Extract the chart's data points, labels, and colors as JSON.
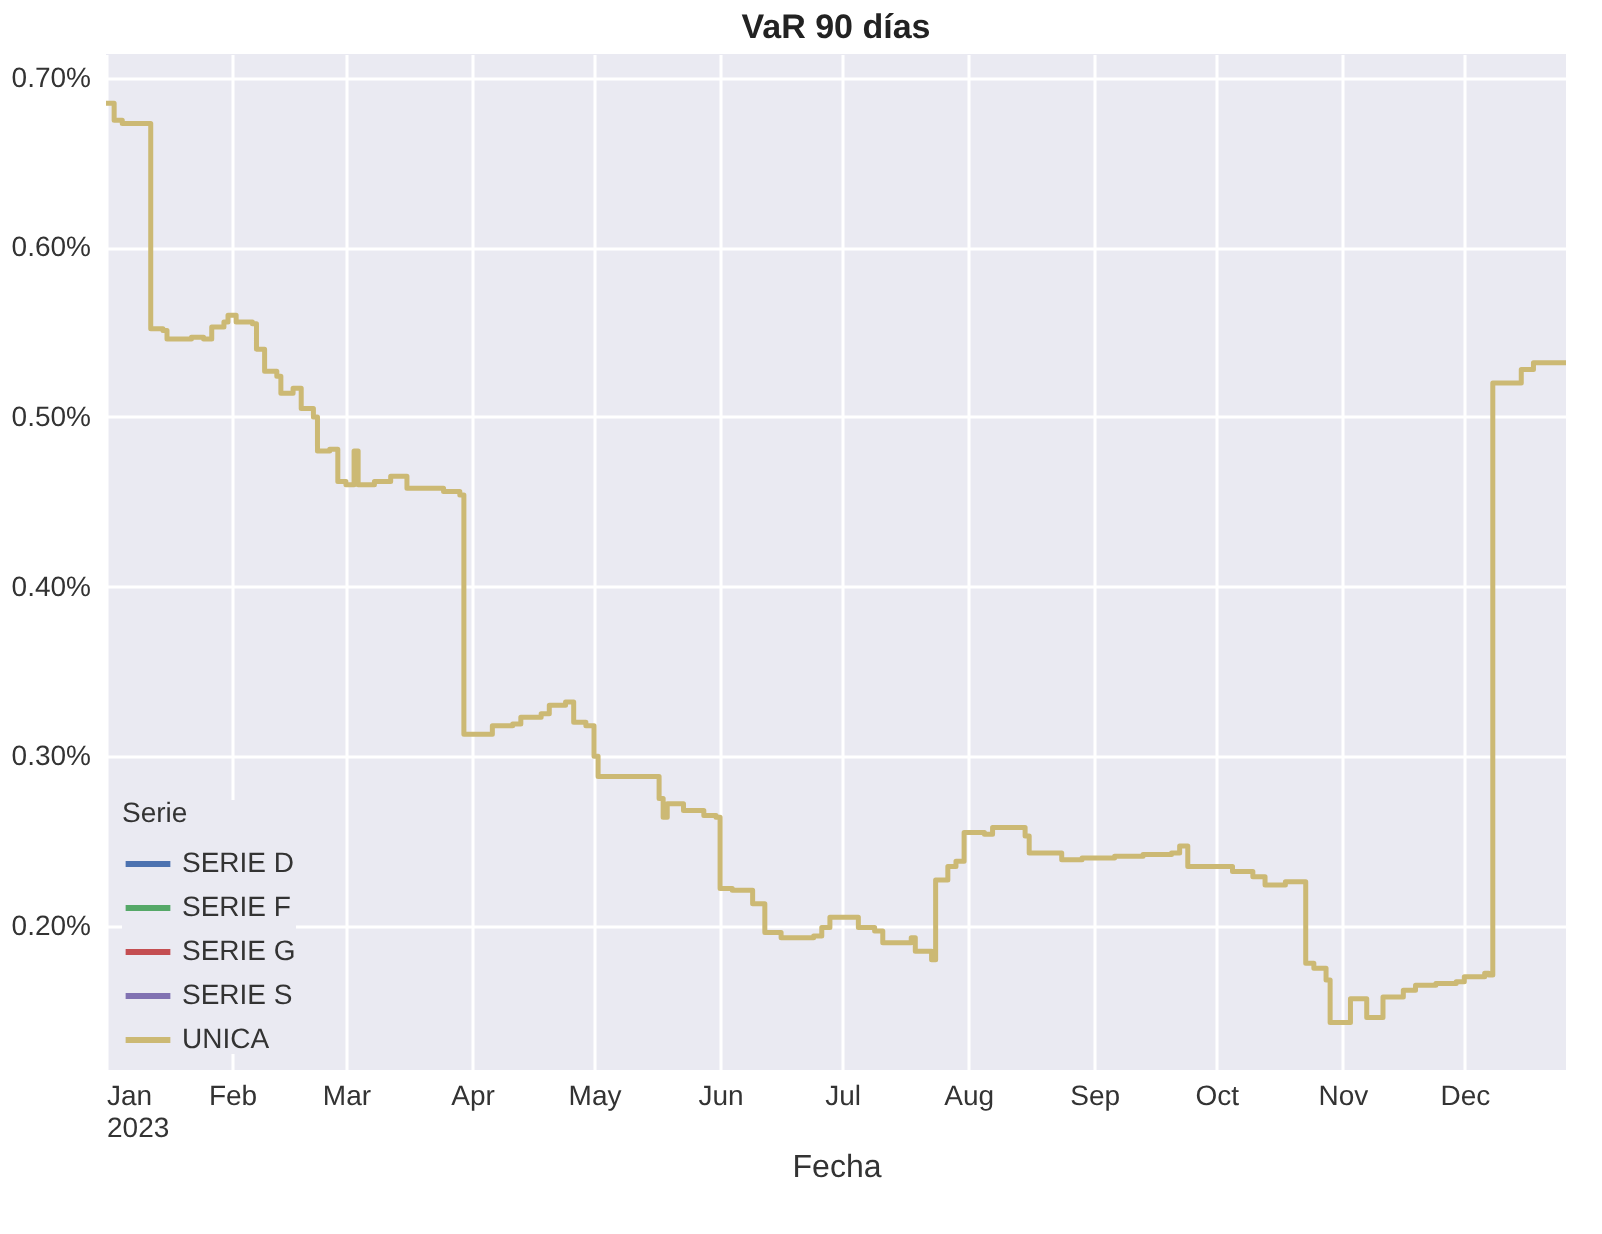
{
  "chart_data": {
    "type": "step",
    "title": "VaR 90 días",
    "xlabel": "Fecha",
    "legend_title": "Serie",
    "x": [
      "2023-01-01",
      "2023-01-03",
      "2023-01-05",
      "2023-01-11",
      "2023-01-12",
      "2023-01-15",
      "2023-01-16",
      "2023-01-22",
      "2023-01-25",
      "2023-01-27",
      "2023-01-30",
      "2023-01-31",
      "2023-02-02",
      "2023-02-06",
      "2023-02-07",
      "2023-02-09",
      "2023-02-12",
      "2023-02-13",
      "2023-02-16",
      "2023-02-18",
      "2023-02-21",
      "2023-02-22",
      "2023-02-25",
      "2023-02-27",
      "2023-03-01",
      "2023-03-03",
      "2023-03-04",
      "2023-03-08",
      "2023-03-12",
      "2023-03-16",
      "2023-03-25",
      "2023-03-29",
      "2023-03-30",
      "2023-04-02",
      "2023-04-06",
      "2023-04-11",
      "2023-04-13",
      "2023-04-18",
      "2023-04-20",
      "2023-04-24",
      "2023-04-26",
      "2023-04-29",
      "2023-05-01",
      "2023-05-02",
      "2023-05-15",
      "2023-05-17",
      "2023-05-18",
      "2023-05-19",
      "2023-05-23",
      "2023-05-28",
      "2023-05-31",
      "2023-06-01",
      "2023-06-04",
      "2023-06-09",
      "2023-06-12",
      "2023-06-16",
      "2023-06-24",
      "2023-06-26",
      "2023-06-28",
      "2023-07-01",
      "2023-07-05",
      "2023-07-09",
      "2023-07-11",
      "2023-07-16",
      "2023-07-18",
      "2023-07-19",
      "2023-07-23",
      "2023-07-24",
      "2023-07-27",
      "2023-07-29",
      "2023-07-31",
      "2023-08-05",
      "2023-08-07",
      "2023-08-12",
      "2023-08-15",
      "2023-08-16",
      "2023-08-20",
      "2023-08-24",
      "2023-08-29",
      "2023-09-06",
      "2023-09-13",
      "2023-09-20",
      "2023-09-22",
      "2023-09-24",
      "2023-09-30",
      "2023-10-05",
      "2023-10-10",
      "2023-10-13",
      "2023-10-18",
      "2023-10-22",
      "2023-10-23",
      "2023-10-25",
      "2023-10-28",
      "2023-10-29",
      "2023-11-01",
      "2023-11-03",
      "2023-11-05",
      "2023-11-07",
      "2023-11-09",
      "2023-11-11",
      "2023-11-16",
      "2023-11-19",
      "2023-11-24",
      "2023-11-29",
      "2023-12-01",
      "2023-12-06",
      "2023-12-07",
      "2023-12-08",
      "2023-12-11",
      "2023-12-15",
      "2023-12-18",
      "2023-12-26"
    ],
    "series": [
      {
        "name": "SERIE D",
        "color": "#4c72b0",
        "values": [
          null,
          null,
          null,
          null,
          null,
          null,
          null,
          null,
          null,
          null,
          null,
          null,
          null,
          null,
          null,
          null,
          null,
          null,
          null,
          null,
          null,
          null,
          null,
          null,
          null,
          null,
          null,
          null,
          null,
          null,
          null,
          null,
          null,
          null,
          null,
          null,
          null,
          null,
          null,
          null,
          null,
          null,
          null,
          null,
          null,
          null,
          null,
          null,
          null,
          null,
          null,
          null,
          null,
          null,
          null,
          null,
          null,
          null,
          null,
          null,
          null,
          null,
          null,
          null,
          null,
          null,
          null,
          null,
          null,
          null,
          null,
          null,
          null,
          null,
          null,
          null,
          null,
          null,
          null,
          null,
          null,
          null,
          null,
          null,
          null,
          null,
          null,
          null,
          null,
          null,
          null,
          null,
          null,
          null,
          null,
          null,
          null,
          null,
          null,
          null,
          null,
          null,
          null,
          null,
          null,
          null,
          null,
          null,
          null,
          null,
          null,
          null
        ]
      },
      {
        "name": "SERIE F",
        "color": "#55a868",
        "values": [
          null,
          null,
          null,
          null,
          null,
          null,
          null,
          null,
          null,
          null,
          null,
          null,
          null,
          null,
          null,
          null,
          null,
          null,
          null,
          null,
          null,
          null,
          null,
          null,
          null,
          null,
          null,
          null,
          null,
          null,
          null,
          null,
          null,
          null,
          null,
          null,
          null,
          null,
          null,
          null,
          null,
          null,
          null,
          null,
          null,
          null,
          null,
          null,
          null,
          null,
          null,
          null,
          null,
          null,
          null,
          null,
          null,
          null,
          null,
          null,
          null,
          null,
          null,
          null,
          null,
          null,
          null,
          null,
          null,
          null,
          null,
          null,
          null,
          null,
          null,
          null,
          null,
          null,
          null,
          null,
          null,
          null,
          null,
          null,
          null,
          null,
          null,
          null,
          null,
          null,
          null,
          null,
          null,
          null,
          null,
          null,
          null,
          null,
          null,
          null,
          null,
          null,
          null,
          null,
          null,
          null,
          null,
          null,
          null,
          null,
          null,
          null
        ]
      },
      {
        "name": "SERIE G",
        "color": "#c44e52",
        "values": [
          null,
          null,
          null,
          null,
          null,
          null,
          null,
          null,
          null,
          null,
          null,
          null,
          null,
          null,
          null,
          null,
          null,
          null,
          null,
          null,
          null,
          null,
          null,
          null,
          null,
          null,
          null,
          null,
          null,
          null,
          null,
          null,
          null,
          null,
          null,
          null,
          null,
          null,
          null,
          null,
          null,
          null,
          null,
          null,
          null,
          null,
          null,
          null,
          null,
          null,
          null,
          null,
          null,
          null,
          null,
          null,
          null,
          null,
          null,
          null,
          null,
          null,
          null,
          null,
          null,
          null,
          null,
          null,
          null,
          null,
          null,
          null,
          null,
          null,
          null,
          null,
          null,
          null,
          null,
          null,
          null,
          null,
          null,
          null,
          null,
          null,
          null,
          null,
          null,
          null,
          null,
          null,
          null,
          null,
          null,
          null,
          null,
          null,
          null,
          null,
          null,
          null,
          null,
          null,
          null,
          null,
          null,
          null,
          null,
          null,
          null,
          null
        ]
      },
      {
        "name": "SERIE S",
        "color": "#8172b2",
        "values": [
          null,
          null,
          null,
          null,
          null,
          null,
          null,
          null,
          null,
          null,
          null,
          null,
          null,
          null,
          null,
          null,
          null,
          null,
          null,
          null,
          null,
          null,
          null,
          null,
          null,
          null,
          null,
          null,
          null,
          null,
          null,
          null,
          null,
          null,
          null,
          null,
          null,
          null,
          null,
          null,
          null,
          null,
          null,
          null,
          null,
          null,
          null,
          null,
          null,
          null,
          null,
          null,
          null,
          null,
          null,
          null,
          null,
          null,
          null,
          null,
          null,
          null,
          null,
          null,
          null,
          null,
          null,
          null,
          null,
          null,
          null,
          null,
          null,
          null,
          null,
          null,
          null,
          null,
          null,
          null,
          null,
          null,
          null,
          null,
          null,
          null,
          null,
          null,
          null,
          null,
          null,
          null,
          null,
          null,
          null,
          null,
          null,
          null,
          null,
          null,
          null,
          null,
          null,
          null,
          null,
          null,
          null,
          null,
          null,
          null,
          null,
          null
        ]
      },
      {
        "name": "UNICA",
        "color": "#ccb974",
        "values": [
          0.685,
          0.675,
          0.673,
          0.673,
          0.552,
          0.551,
          0.546,
          0.547,
          0.546,
          0.553,
          0.556,
          0.56,
          0.556,
          0.555,
          0.54,
          0.527,
          0.524,
          0.514,
          0.517,
          0.505,
          0.5,
          0.48,
          0.481,
          0.462,
          0.46,
          0.48,
          0.46,
          0.462,
          0.465,
          0.458,
          0.456,
          0.454,
          0.313,
          0.313,
          0.318,
          0.319,
          0.323,
          0.325,
          0.33,
          0.332,
          0.32,
          0.318,
          0.3,
          0.288,
          0.288,
          0.275,
          0.264,
          0.272,
          0.268,
          0.265,
          0.264,
          0.222,
          0.221,
          0.213,
          0.196,
          0.193,
          0.194,
          0.199,
          0.205,
          0.205,
          0.199,
          0.197,
          0.19,
          0.19,
          0.193,
          0.185,
          0.18,
          0.227,
          0.235,
          0.238,
          0.255,
          0.254,
          0.258,
          0.258,
          0.253,
          0.243,
          0.243,
          0.239,
          0.24,
          0.241,
          0.242,
          0.243,
          0.247,
          0.235,
          0.235,
          0.232,
          0.229,
          0.224,
          0.226,
          0.226,
          0.178,
          0.175,
          0.168,
          0.143,
          0.143,
          0.157,
          0.157,
          0.146,
          0.146,
          0.158,
          0.162,
          0.165,
          0.166,
          0.167,
          0.17,
          0.172,
          0.171,
          0.52,
          0.52,
          0.528,
          0.532,
          0.531
        ]
      }
    ],
    "xlim": [
      "2023-01-01",
      "2023-12-26"
    ],
    "xticks": [
      {
        "value": "2023-01-01",
        "label": "Jan\n2023"
      },
      {
        "value": "2023-02-01",
        "label": "Feb"
      },
      {
        "value": "2023-03-01",
        "label": "Mar"
      },
      {
        "value": "2023-04-01",
        "label": "Apr"
      },
      {
        "value": "2023-05-01",
        "label": "May"
      },
      {
        "value": "2023-06-01",
        "label": "Jun"
      },
      {
        "value": "2023-07-01",
        "label": "Jul"
      },
      {
        "value": "2023-08-01",
        "label": "Aug"
      },
      {
        "value": "2023-09-01",
        "label": "Sep"
      },
      {
        "value": "2023-10-01",
        "label": "Oct"
      },
      {
        "value": "2023-11-01",
        "label": "Nov"
      },
      {
        "value": "2023-12-01",
        "label": "Dec"
      }
    ],
    "ylim": [
      0.115,
      0.714
    ],
    "yticks": [
      {
        "value": 0.2,
        "label": "0.20%"
      },
      {
        "value": 0.3,
        "label": "0.30%"
      },
      {
        "value": 0.4,
        "label": "0.40%"
      },
      {
        "value": 0.5,
        "label": "0.50%"
      },
      {
        "value": 0.6,
        "label": "0.60%"
      },
      {
        "value": 0.7,
        "label": "0.70%"
      }
    ],
    "grid": true,
    "legend": "bottom left",
    "line_style": "solid",
    "marker": "none"
  }
}
